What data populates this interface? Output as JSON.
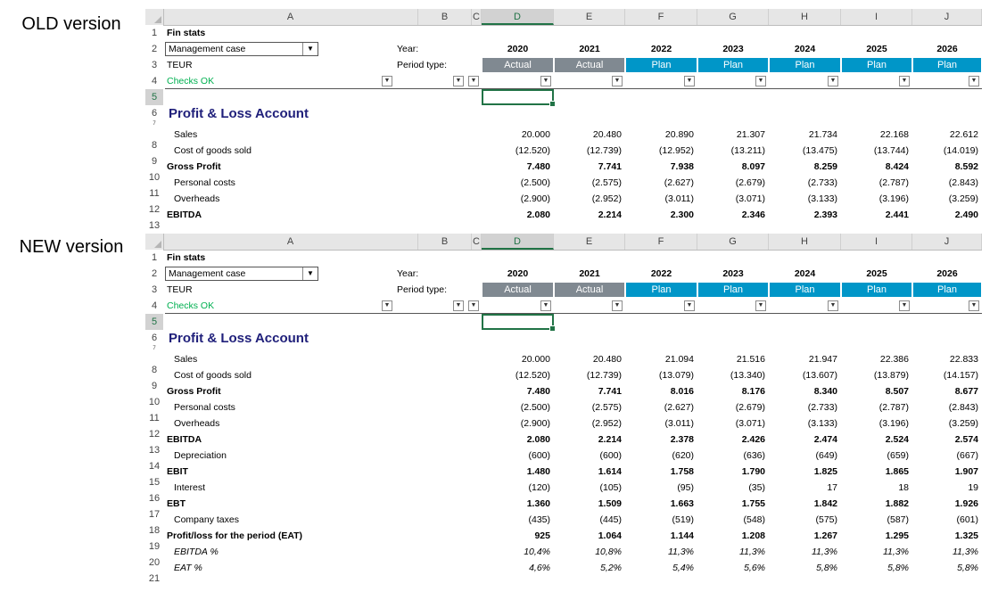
{
  "labels": {
    "old": "OLD version",
    "new": "NEW version"
  },
  "columns": [
    "A",
    "B",
    "C",
    "D",
    "E",
    "F",
    "G",
    "H",
    "I",
    "J"
  ],
  "meta": {
    "fin_stats": "Fin stats",
    "case_select": "Management case",
    "unit": "TEUR",
    "checks": "Checks OK",
    "year_label": "Year:",
    "period_label": "Period type:",
    "years": [
      "2020",
      "2021",
      "2022",
      "2023",
      "2024",
      "2025",
      "2026"
    ],
    "period_types": [
      "Actual",
      "Actual",
      "Plan",
      "Plan",
      "Plan",
      "Plan",
      "Plan"
    ],
    "section_title": "Profit & Loss Account"
  },
  "colors": {
    "actual": "#808991",
    "plan": "#0096c8",
    "title": "#1f1f7a",
    "checks": "#00b050",
    "selection": "#217346"
  },
  "old": {
    "row_numbers": [
      "1",
      "2",
      "3",
      "4",
      "5",
      "6",
      "7",
      "8",
      "9",
      "10",
      "11",
      "12",
      "13"
    ],
    "rows": [
      {
        "label": "Sales",
        "style": "indent",
        "values": [
          "20.000",
          "20.480",
          "20.890",
          "21.307",
          "21.734",
          "22.168",
          "22.612"
        ]
      },
      {
        "label": "Cost of goods sold",
        "style": "indent",
        "values": [
          "(12.520)",
          "(12.739)",
          "(12.952)",
          "(13.211)",
          "(13.475)",
          "(13.744)",
          "(14.019)"
        ]
      },
      {
        "label": "Gross Profit",
        "style": "bold",
        "values": [
          "7.480",
          "7.741",
          "7.938",
          "8.097",
          "8.259",
          "8.424",
          "8.592"
        ]
      },
      {
        "label": "Personal costs",
        "style": "indent",
        "values": [
          "(2.500)",
          "(2.575)",
          "(2.627)",
          "(2.679)",
          "(2.733)",
          "(2.787)",
          "(2.843)"
        ]
      },
      {
        "label": "Overheads",
        "style": "indent",
        "values": [
          "(2.900)",
          "(2.952)",
          "(3.011)",
          "(3.071)",
          "(3.133)",
          "(3.196)",
          "(3.259)"
        ]
      },
      {
        "label": "EBITDA",
        "style": "bold",
        "values": [
          "2.080",
          "2.214",
          "2.300",
          "2.346",
          "2.393",
          "2.441",
          "2.490"
        ]
      }
    ]
  },
  "new": {
    "row_numbers": [
      "1",
      "2",
      "3",
      "4",
      "5",
      "6",
      "7",
      "8",
      "9",
      "10",
      "11",
      "12",
      "13",
      "14",
      "15",
      "16",
      "17",
      "18",
      "19",
      "20",
      "21"
    ],
    "rows": [
      {
        "label": "Sales",
        "style": "indent",
        "values": [
          "20.000",
          "20.480",
          "21.094",
          "21.516",
          "21.947",
          "22.386",
          "22.833"
        ]
      },
      {
        "label": "Cost of goods sold",
        "style": "indent",
        "values": [
          "(12.520)",
          "(12.739)",
          "(13.079)",
          "(13.340)",
          "(13.607)",
          "(13.879)",
          "(14.157)"
        ]
      },
      {
        "label": "Gross Profit",
        "style": "bold",
        "values": [
          "7.480",
          "7.741",
          "8.016",
          "8.176",
          "8.340",
          "8.507",
          "8.677"
        ]
      },
      {
        "label": "Personal costs",
        "style": "indent",
        "values": [
          "(2.500)",
          "(2.575)",
          "(2.627)",
          "(2.679)",
          "(2.733)",
          "(2.787)",
          "(2.843)"
        ]
      },
      {
        "label": "Overheads",
        "style": "indent",
        "values": [
          "(2.900)",
          "(2.952)",
          "(3.011)",
          "(3.071)",
          "(3.133)",
          "(3.196)",
          "(3.259)"
        ]
      },
      {
        "label": "EBITDA",
        "style": "bold",
        "values": [
          "2.080",
          "2.214",
          "2.378",
          "2.426",
          "2.474",
          "2.524",
          "2.574"
        ]
      },
      {
        "label": "Depreciation",
        "style": "indent",
        "values": [
          "(600)",
          "(600)",
          "(620)",
          "(636)",
          "(649)",
          "(659)",
          "(667)"
        ]
      },
      {
        "label": "EBIT",
        "style": "bold",
        "values": [
          "1.480",
          "1.614",
          "1.758",
          "1.790",
          "1.825",
          "1.865",
          "1.907"
        ]
      },
      {
        "label": "Interest",
        "style": "indent",
        "values": [
          "(120)",
          "(105)",
          "(95)",
          "(35)",
          "17",
          "18",
          "19"
        ]
      },
      {
        "label": "EBT",
        "style": "bold",
        "values": [
          "1.360",
          "1.509",
          "1.663",
          "1.755",
          "1.842",
          "1.882",
          "1.926"
        ]
      },
      {
        "label": "Company taxes",
        "style": "indent",
        "values": [
          "(435)",
          "(445)",
          "(519)",
          "(548)",
          "(575)",
          "(587)",
          "(601)"
        ]
      },
      {
        "label": "Profit/loss for the period (EAT)",
        "style": "bold",
        "values": [
          "925",
          "1.064",
          "1.144",
          "1.208",
          "1.267",
          "1.295",
          "1.325"
        ]
      },
      {
        "label": "EBITDA %",
        "style": "italic",
        "values": [
          "10,4%",
          "10,8%",
          "11,3%",
          "11,3%",
          "11,3%",
          "11,3%",
          "11,3%"
        ]
      },
      {
        "label": "EAT %",
        "style": "italic",
        "values": [
          "4,6%",
          "5,2%",
          "5,4%",
          "5,6%",
          "5,8%",
          "5,8%",
          "5,8%"
        ]
      }
    ]
  }
}
